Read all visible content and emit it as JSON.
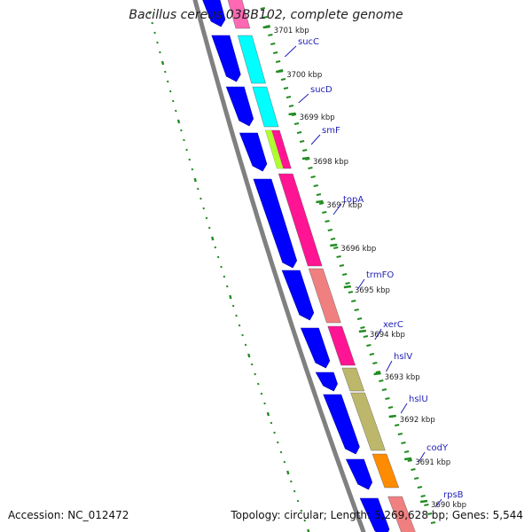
{
  "title": "Bacillus cereus 03BB102, complete genome",
  "footer": {
    "accession": "Accession: NC_012472",
    "summary": "Topology: circular; Length: 5,269,628 bp; Genes: 5,544"
  },
  "ticks": [
    "3701 kbp",
    "3700 kbp",
    "3699 kbp",
    "3698 kbp",
    "3697 kbp",
    "3696 kbp",
    "3695 kbp",
    "3694 kbp",
    "3693 kbp",
    "3692 kbp",
    "3691 kbp",
    "3690 kbp"
  ],
  "genes": [
    {
      "name": "sucC",
      "color": "#00ffff"
    },
    {
      "name": "sucD",
      "color": "#00ffff"
    },
    {
      "name": "smF",
      "color": "#ff1493"
    },
    {
      "name": "topA",
      "color": "#ff1493"
    },
    {
      "name": "trmFO",
      "color": "#f08080"
    },
    {
      "name": "xerC",
      "color": "#ff1493"
    },
    {
      "name": "hslV",
      "color": "#bdb76b"
    },
    {
      "name": "hslU",
      "color": "#bdb76b"
    },
    {
      "name": "codY",
      "color": "#ff8c00"
    },
    {
      "name": "rpsB",
      "color": "#f08080"
    }
  ],
  "colors": {
    "backbone": "#808080",
    "strand_arrows": "#0000ff",
    "gc_dots": "#228b22",
    "tick_marks": "#228b22",
    "label_lines": "#1f1fb8",
    "smF_extra": "#adff2f"
  }
}
